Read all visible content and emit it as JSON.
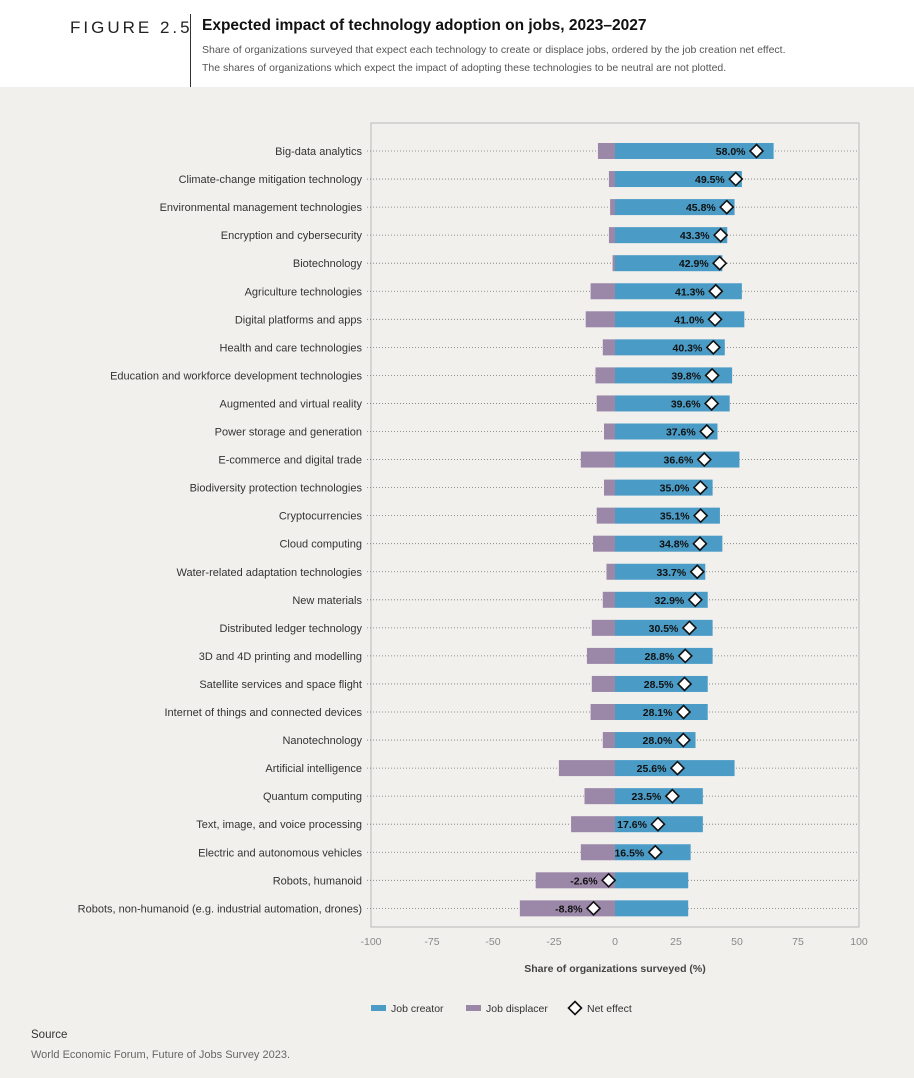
{
  "header": {
    "figure_label": "FIGURE 2.5",
    "title": "Expected impact of technology adoption on jobs, 2023–2027",
    "subtitle_line1": "Share of organizations surveyed that expect each technology to create or displace jobs, ordered by the job creation net effect.",
    "subtitle_line2": "The shares of organizations which expect the impact of adopting these technologies to be neutral are not plotted."
  },
  "colors": {
    "job_creator": "#4a9bc6",
    "job_displacer": "#9b87a8",
    "background": "#f1f0ed"
  },
  "chart_data": {
    "type": "bar",
    "orientation": "horizontal",
    "xlabel": "Share of organizations surveyed (%)",
    "xlim": [
      -100,
      100
    ],
    "xticks": [
      -100,
      -75,
      -50,
      -25,
      0,
      25,
      50,
      75,
      100
    ],
    "grid": "dotted row guides",
    "legend_placement": "bottom-center",
    "categories": [
      "Big-data analytics",
      "Climate-change mitigation technology",
      "Environmental management technologies",
      "Encryption and cybersecurity",
      "Biotechnology",
      "Agriculture technologies",
      "Digital platforms and apps",
      "Health and care technologies",
      "Education and workforce development technologies",
      "Augmented and virtual reality",
      "Power storage and generation",
      "E-commerce and digital trade",
      "Biodiversity protection technologies",
      "Cryptocurrencies",
      "Cloud computing",
      "Water-related adaptation technologies",
      "New materials",
      "Distributed ledger technology",
      "3D and 4D printing and modelling",
      "Satellite services and space flight",
      "Internet of things and connected devices",
      "Nanotechnology",
      "Artificial intelligence",
      "Quantum computing",
      "Text, image, and voice processing",
      "Electric and autonomous vehicles",
      "Robots, humanoid",
      "Robots, non-humanoid (e.g. industrial automation, drones)"
    ],
    "series": [
      {
        "name": "Job creator",
        "values": [
          65,
          52,
          49,
          46,
          44,
          52,
          53,
          45,
          48,
          47,
          42,
          51,
          40,
          43,
          44,
          37,
          38,
          40,
          40,
          38,
          38,
          33,
          49,
          36,
          36,
          31,
          30,
          30
        ]
      },
      {
        "name": "Job displacer",
        "values": [
          -7,
          -2.5,
          -2,
          -2.5,
          -1,
          -10,
          -12,
          -5,
          -8,
          -7.5,
          -4.5,
          -14,
          -4.5,
          -7.5,
          -9,
          -3.5,
          -5,
          -9.5,
          -11.5,
          -9.5,
          -10,
          -5,
          -23,
          -12.5,
          -18,
          -14,
          -32.5,
          -39
        ]
      },
      {
        "name": "Net effect",
        "values": [
          58.0,
          49.5,
          45.8,
          43.3,
          42.9,
          41.3,
          41.0,
          40.3,
          39.8,
          39.6,
          37.6,
          36.6,
          35.0,
          35.1,
          34.8,
          33.7,
          32.9,
          30.5,
          28.8,
          28.5,
          28.1,
          28.0,
          25.6,
          23.5,
          17.6,
          16.5,
          -2.6,
          -8.8
        ],
        "labels": [
          "58.0%",
          "49.5%",
          "45.8%",
          "43.3%",
          "42.9%",
          "41.3%",
          "41.0%",
          "40.3%",
          "39.8%",
          "39.6%",
          "37.6%",
          "36.6%",
          "35.0%",
          "35.1%",
          "34.8%",
          "33.7%",
          "32.9%",
          "30.5%",
          "28.8%",
          "28.5%",
          "28.1%",
          "28.0%",
          "25.6%",
          "23.5%",
          "17.6%",
          "16.5%",
          "-2.6%",
          "-8.8%"
        ]
      }
    ]
  },
  "source": {
    "label": "Source",
    "text": "World Economic Forum, Future of Jobs Survey 2023."
  }
}
